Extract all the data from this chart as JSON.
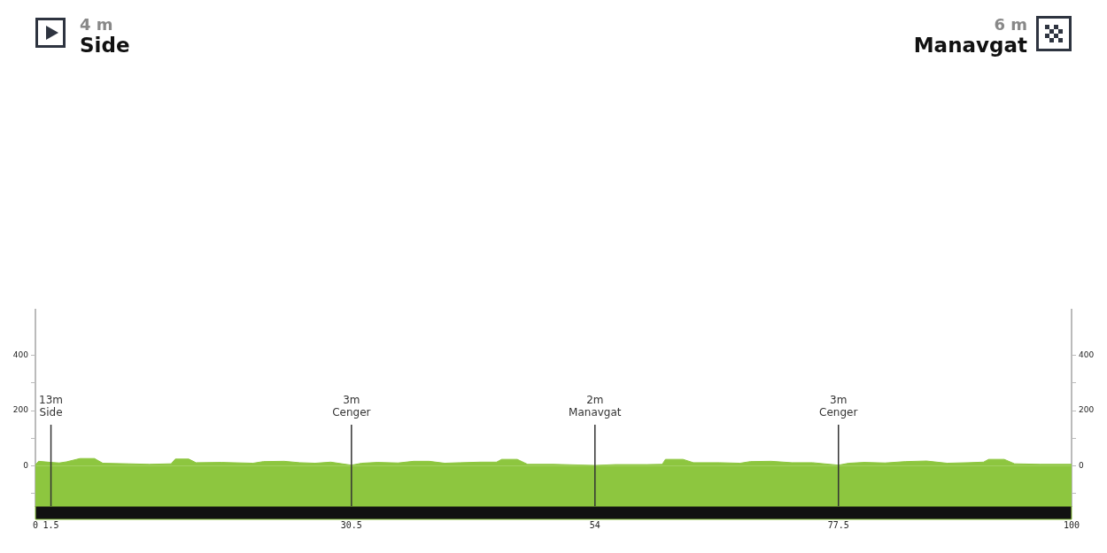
{
  "chart_data": {
    "type": "area",
    "annotations": [
      "4 m",
      "Side",
      "6 m",
      "Manavgat"
    ],
    "x": [
      0,
      0.3,
      1.5,
      2.3,
      3,
      4.3,
      5.7,
      6.5,
      9,
      11,
      13.1,
      13.5,
      14.8,
      15.5,
      18,
      20,
      21,
      22,
      24,
      25.5,
      27,
      28.5,
      30.5,
      31.5,
      33,
      35,
      36.5,
      38,
      39.5,
      41,
      43,
      44.5,
      45,
      46.5,
      47.5,
      50,
      54,
      56,
      59,
      60.5,
      60.8,
      62.5,
      63.5,
      66,
      68,
      69,
      71,
      73,
      75,
      77.5,
      78.5,
      80,
      82,
      84,
      86,
      88,
      90,
      91.5,
      92,
      93.5,
      94.5,
      97,
      100
    ],
    "series": [
      {
        "color": "#8dc63f",
        "values": [
          4,
          17,
          13,
          11,
          15,
          27,
          27,
          10,
          8,
          6,
          8,
          25,
          25,
          12,
          13,
          11,
          10,
          16,
          17,
          12,
          10,
          14,
          3,
          10,
          13,
          11,
          17,
          17,
          10,
          12,
          14,
          14,
          24,
          24,
          6,
          6,
          2,
          5,
          5,
          6,
          24,
          24,
          12,
          12,
          10,
          16,
          17,
          12,
          12,
          3,
          10,
          13,
          11,
          16,
          18,
          10,
          12,
          14,
          24,
          24,
          8,
          6,
          6
        ]
      }
    ],
    "xlim": [
      0,
      100
    ],
    "xticks": [
      0,
      1.5,
      30.5,
      54,
      77.5,
      100
    ],
    "ylim": [
      -145,
      565
    ],
    "yticks": [
      {
        "value": -100,
        "label": null
      },
      0,
      {
        "value": 100,
        "label": null
      },
      200,
      {
        "value": 300,
        "label": null
      },
      400
    ],
    "y2lim": [
      -145,
      565
    ],
    "y2ticks": [
      {
        "value": -100,
        "label": null
      },
      0,
      {
        "value": 100,
        "label": null
      },
      200,
      {
        "value": 300,
        "label": null
      },
      400
    ],
    "ref_lines": [
      {
        "axis": "x",
        "value": 1.5,
        "label": "13m\nSide",
        "color": "#333333"
      },
      {
        "axis": "x",
        "value": 30.5,
        "label": "3m\nCenger",
        "color": "#333333"
      },
      {
        "axis": "x",
        "value": 54,
        "label": "2m\nManavgat",
        "color": "#333333"
      },
      {
        "axis": "x",
        "value": 77.5,
        "label": "3m\nCenger",
        "color": "#333333"
      }
    ],
    "bands": [
      {
        "axis": "y",
        "from": -145,
        "to": 0,
        "color": "#8dc63f"
      }
    ],
    "grid": false,
    "legend": false
  }
}
